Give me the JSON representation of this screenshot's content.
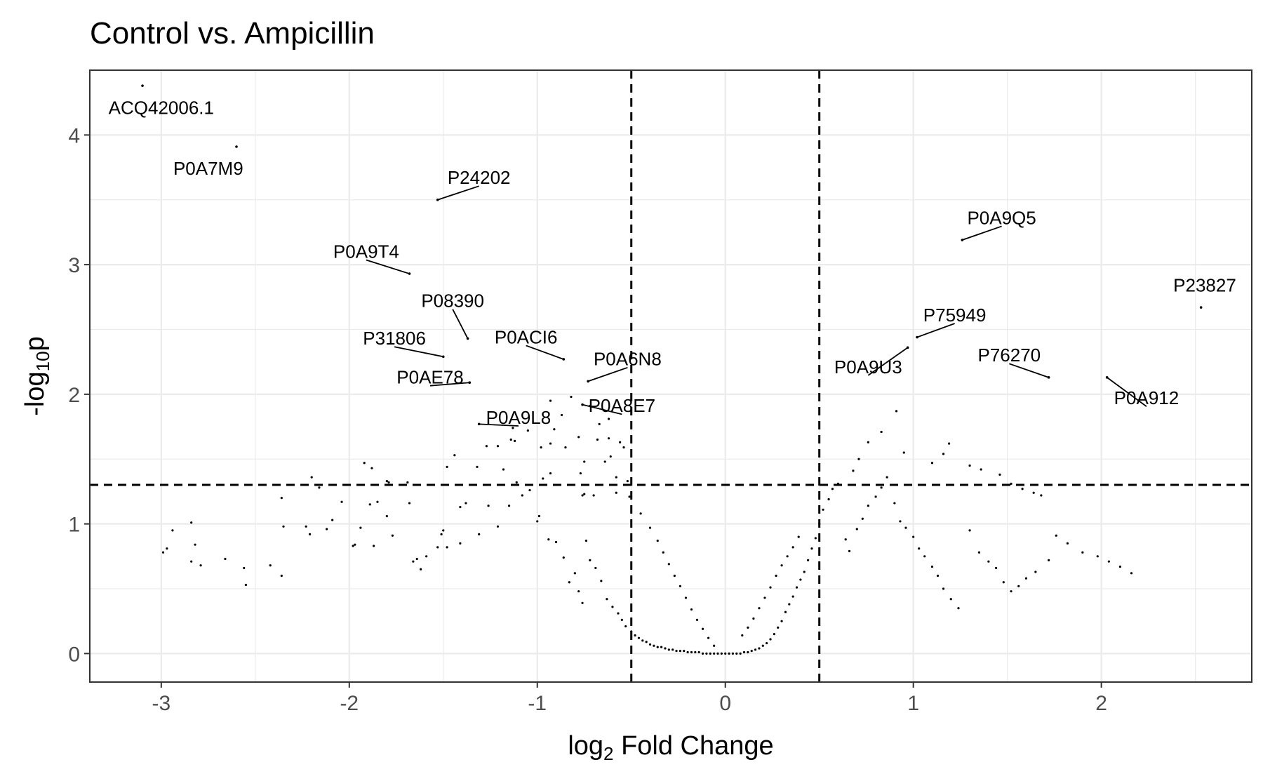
{
  "chart_data": {
    "type": "scatter",
    "title": "Control vs. Ampicillin",
    "xlabel": {
      "base": "log",
      "sub": "2",
      "rest": " Fold Change"
    },
    "ylabel": {
      "base": "-log",
      "sub": "10",
      "rest": "p"
    },
    "xlim": [
      -3.38,
      2.8
    ],
    "ylim": [
      -0.22,
      4.5
    ],
    "x_ticks": [
      -3,
      -2,
      -1,
      0,
      1,
      2
    ],
    "x_tick_labels": [
      "-3",
      "-2",
      "-1",
      "0",
      "1",
      "2"
    ],
    "y_ticks": [
      0,
      1,
      2,
      3,
      4
    ],
    "y_tick_labels": [
      "0",
      "1",
      "2",
      "3",
      "4"
    ],
    "grid": true,
    "thresholds": {
      "fold_change_lines": [
        -0.5,
        0.5
      ],
      "p_line": 1.301
    },
    "labeled_points": [
      {
        "label": "ACQ42006.1",
        "x": -3.1,
        "y": 4.38,
        "label_x": -3.0,
        "label_y": 4.2
      },
      {
        "label": "P0A7M9",
        "x": -2.6,
        "y": 3.91,
        "label_x": -2.75,
        "label_y": 3.73
      },
      {
        "label": "P24202",
        "x": -1.53,
        "y": 3.5,
        "label_x": -1.31,
        "label_y": 3.66
      },
      {
        "label": "P0A9Q5",
        "x": 1.26,
        "y": 3.19,
        "label_x": 1.47,
        "label_y": 3.35
      },
      {
        "label": "P0A9T4",
        "x": -1.68,
        "y": 2.93,
        "label_x": -1.91,
        "label_y": 3.09
      },
      {
        "label": "P23827",
        "x": 2.53,
        "y": 2.67,
        "label_x": 2.55,
        "label_y": 2.83
      },
      {
        "label": "P08390",
        "x": -1.37,
        "y": 2.43,
        "label_x": -1.45,
        "label_y": 2.71
      },
      {
        "label": "P75949",
        "x": 1.02,
        "y": 2.44,
        "label_x": 1.22,
        "label_y": 2.6
      },
      {
        "label": "P31806",
        "x": -1.5,
        "y": 2.29,
        "label_x": -1.76,
        "label_y": 2.42
      },
      {
        "label": "P0ACI6",
        "x": -0.86,
        "y": 2.27,
        "label_x": -1.06,
        "label_y": 2.43
      },
      {
        "label": "P0A6N8",
        "x": -0.73,
        "y": 2.1,
        "label_x": -0.52,
        "label_y": 2.26
      },
      {
        "label": "P0A9U3",
        "x": 0.97,
        "y": 2.36,
        "label_x": 0.76,
        "label_y": 2.2
      },
      {
        "label": "P76270",
        "x": 1.72,
        "y": 2.13,
        "label_x": 1.51,
        "label_y": 2.29
      },
      {
        "label": "P0AE78",
        "x": -1.36,
        "y": 2.09,
        "label_x": -1.57,
        "label_y": 2.12
      },
      {
        "label": "P0A912",
        "x": 2.03,
        "y": 2.13,
        "label_x": 2.24,
        "label_y": 1.96
      },
      {
        "label": "P0A8E7",
        "x": -0.76,
        "y": 1.92,
        "label_x": -0.55,
        "label_y": 1.9
      },
      {
        "label": "P0A9L8",
        "x": -1.31,
        "y": 1.77,
        "label_x": -1.1,
        "label_y": 1.81
      }
    ],
    "scatter_points": [
      [
        -2.97,
        0.81
      ],
      [
        -2.99,
        0.78
      ],
      [
        -2.94,
        0.95
      ],
      [
        -2.84,
        0.71
      ],
      [
        -2.84,
        1.01
      ],
      [
        -2.79,
        0.68
      ],
      [
        -2.82,
        0.84
      ],
      [
        -2.66,
        0.73
      ],
      [
        -2.56,
        0.66
      ],
      [
        -2.55,
        0.53
      ],
      [
        -2.42,
        0.68
      ],
      [
        -2.36,
        0.6
      ],
      [
        -2.23,
        0.98
      ],
      [
        -2.16,
        1.28
      ],
      [
        -2.2,
        1.36
      ],
      [
        -2.12,
        0.96
      ],
      [
        -1.98,
        0.83
      ],
      [
        -2.09,
        1.03
      ],
      [
        -1.94,
        0.97
      ],
      [
        -1.87,
        0.83
      ],
      [
        -1.97,
        0.84
      ],
      [
        -1.85,
        1.17
      ],
      [
        -1.89,
        1.15
      ],
      [
        -1.8,
        1.33
      ],
      [
        -1.8,
        1.06
      ],
      [
        -1.64,
        0.73
      ],
      [
        -1.77,
        0.91
      ],
      [
        -1.53,
        0.82
      ],
      [
        -1.68,
        1.16
      ],
      [
        -1.44,
        1.53
      ],
      [
        -1.69,
        1.32
      ],
      [
        -1.48,
        1.44
      ],
      [
        -1.41,
        1.13
      ],
      [
        -1.51,
        0.92
      ],
      [
        -1.48,
        0.82
      ],
      [
        -1.31,
        0.92
      ],
      [
        -1.41,
        0.85
      ],
      [
        -1.21,
        0.98
      ],
      [
        -1.38,
        1.16
      ],
      [
        -1.26,
        1.14
      ],
      [
        -1.32,
        1.44
      ],
      [
        -1.08,
        1.22
      ],
      [
        -1.15,
        1.14
      ],
      [
        -1.11,
        1.32
      ],
      [
        -1.18,
        1.42
      ],
      [
        -1.14,
        1.65
      ],
      [
        -1.13,
        1.74
      ],
      [
        -0.98,
        1.59
      ],
      [
        -0.93,
        1.62
      ],
      [
        -0.97,
        1.35
      ],
      [
        -0.93,
        1.39
      ],
      [
        -0.85,
        1.59
      ],
      [
        -0.76,
        1.22
      ],
      [
        -0.75,
        1.23
      ],
      [
        -0.7,
        1.22
      ],
      [
        -0.75,
        1.48
      ],
      [
        -0.64,
        1.48
      ],
      [
        -0.77,
        1.39
      ],
      [
        -0.61,
        1.52
      ],
      [
        -0.62,
        1.66
      ],
      [
        -0.58,
        1.24
      ],
      [
        -0.56,
        1.63
      ],
      [
        -0.58,
        1.36
      ],
      [
        -0.54,
        1.59
      ],
      [
        -0.68,
        1.65
      ],
      [
        -2.36,
        1.2
      ],
      [
        -2.35,
        0.98
      ],
      [
        -2.21,
        0.92
      ],
      [
        -2.04,
        1.17
      ],
      [
        -1.92,
        1.47
      ],
      [
        -1.88,
        1.43
      ],
      [
        -1.79,
        1.32
      ],
      [
        -1.66,
        0.71
      ],
      [
        -1.62,
        0.65
      ],
      [
        -1.59,
        0.75
      ],
      [
        -1.5,
        0.95
      ],
      [
        -1.27,
        1.6
      ],
      [
        -1.21,
        1.6
      ],
      [
        -1.12,
        1.64
      ],
      [
        -1.05,
        1.72
      ],
      [
        -0.93,
        1.95
      ],
      [
        -0.91,
        1.73
      ],
      [
        -0.87,
        1.84
      ],
      [
        -0.82,
        1.98
      ],
      [
        -0.78,
        1.67
      ],
      [
        -0.72,
        1.91
      ],
      [
        -0.67,
        1.77
      ],
      [
        -0.62,
        1.81
      ],
      [
        -0.52,
        1.33
      ],
      [
        -0.51,
        1.21
      ],
      [
        -1.04,
        1.26
      ],
      [
        -1.0,
        1.02
      ],
      [
        -0.99,
        1.06
      ],
      [
        -0.94,
        0.88
      ],
      [
        -0.9,
        0.86
      ],
      [
        -0.86,
        0.74
      ],
      [
        -0.83,
        0.55
      ],
      [
        -0.8,
        0.62
      ],
      [
        -0.78,
        0.48
      ],
      [
        -0.76,
        0.39
      ],
      [
        -0.74,
        0.87
      ],
      [
        -0.72,
        0.72
      ],
      [
        -0.69,
        0.66
      ],
      [
        -0.66,
        0.56
      ],
      [
        -0.63,
        0.42
      ],
      [
        -0.6,
        0.36
      ],
      [
        -0.57,
        0.31
      ],
      [
        -0.55,
        0.26
      ],
      [
        -0.53,
        0.21
      ],
      [
        -0.5,
        0.17
      ],
      [
        -0.48,
        0.14
      ],
      [
        -0.46,
        0.12
      ],
      [
        -0.44,
        0.1
      ],
      [
        -0.42,
        0.09
      ],
      [
        -0.4,
        0.07
      ],
      [
        -0.38,
        0.06
      ],
      [
        -0.36,
        0.05
      ],
      [
        -0.34,
        0.05
      ],
      [
        -0.32,
        0.04
      ],
      [
        -0.3,
        0.03
      ],
      [
        -0.28,
        0.03
      ],
      [
        -0.26,
        0.02
      ],
      [
        -0.24,
        0.02
      ],
      [
        -0.22,
        0.02
      ],
      [
        -0.2,
        0.01
      ],
      [
        -0.18,
        0.01
      ],
      [
        -0.16,
        0.01
      ],
      [
        -0.14,
        0.01
      ],
      [
        -0.12,
        0.0
      ],
      [
        -0.1,
        0.0
      ],
      [
        -0.08,
        0.0
      ],
      [
        -0.06,
        0.0
      ],
      [
        -0.04,
        0.0
      ],
      [
        -0.02,
        0.0
      ],
      [
        0.0,
        0.0
      ],
      [
        0.02,
        0.0
      ],
      [
        0.04,
        0.0
      ],
      [
        0.06,
        0.0
      ],
      [
        0.08,
        0.0
      ],
      [
        0.1,
        0.01
      ],
      [
        0.12,
        0.01
      ],
      [
        0.14,
        0.02
      ],
      [
        0.16,
        0.03
      ],
      [
        0.18,
        0.04
      ],
      [
        0.2,
        0.06
      ],
      [
        0.22,
        0.08
      ],
      [
        0.24,
        0.11
      ],
      [
        0.26,
        0.15
      ],
      [
        0.28,
        0.2
      ],
      [
        0.3,
        0.25
      ],
      [
        0.32,
        0.32
      ],
      [
        0.34,
        0.38
      ],
      [
        0.36,
        0.44
      ],
      [
        0.38,
        0.51
      ],
      [
        0.4,
        0.57
      ],
      [
        0.42,
        0.63
      ],
      [
        0.44,
        0.72
      ],
      [
        0.46,
        0.81
      ],
      [
        0.48,
        0.89
      ],
      [
        0.5,
        1.0
      ],
      [
        0.52,
        1.11
      ],
      [
        0.55,
        1.19
      ],
      [
        0.57,
        1.27
      ],
      [
        0.6,
        1.31
      ],
      [
        0.64,
        0.88
      ],
      [
        0.66,
        0.79
      ],
      [
        0.7,
        0.96
      ],
      [
        0.73,
        1.04
      ],
      [
        0.76,
        1.14
      ],
      [
        0.8,
        1.21
      ],
      [
        0.83,
        1.28
      ],
      [
        0.86,
        1.36
      ],
      [
        0.9,
        1.16
      ],
      [
        0.93,
        1.02
      ],
      [
        0.96,
        0.97
      ],
      [
        1.0,
        0.9
      ],
      [
        1.03,
        0.81
      ],
      [
        1.06,
        0.75
      ],
      [
        1.1,
        0.67
      ],
      [
        1.13,
        0.6
      ],
      [
        1.16,
        0.5
      ],
      [
        1.2,
        0.42
      ],
      [
        1.24,
        0.35
      ],
      [
        1.3,
        0.95
      ],
      [
        1.35,
        0.78
      ],
      [
        1.4,
        0.71
      ],
      [
        1.44,
        0.66
      ],
      [
        1.48,
        0.55
      ],
      [
        1.52,
        0.48
      ],
      [
        1.56,
        0.52
      ],
      [
        1.6,
        0.58
      ],
      [
        1.65,
        0.63
      ],
      [
        1.72,
        0.72
      ],
      [
        1.76,
        0.91
      ],
      [
        1.82,
        0.85
      ],
      [
        1.9,
        0.78
      ],
      [
        1.98,
        0.75
      ],
      [
        2.04,
        0.71
      ],
      [
        2.1,
        0.67
      ],
      [
        2.16,
        0.62
      ],
      [
        0.68,
        1.41
      ],
      [
        0.71,
        1.5
      ],
      [
        0.76,
        1.63
      ],
      [
        0.83,
        1.71
      ],
      [
        0.91,
        1.87
      ],
      [
        0.95,
        1.55
      ],
      [
        1.1,
        1.47
      ],
      [
        1.16,
        1.54
      ],
      [
        1.19,
        1.62
      ],
      [
        1.3,
        1.45
      ],
      [
        1.36,
        1.42
      ],
      [
        1.46,
        1.38
      ],
      [
        1.52,
        1.31
      ],
      [
        1.58,
        1.27
      ],
      [
        1.64,
        1.24
      ],
      [
        1.68,
        1.22
      ],
      [
        -0.45,
        1.08
      ],
      [
        -0.4,
        0.97
      ],
      [
        -0.36,
        0.87
      ],
      [
        -0.33,
        0.78
      ],
      [
        -0.3,
        0.69
      ],
      [
        -0.27,
        0.6
      ],
      [
        -0.24,
        0.52
      ],
      [
        -0.21,
        0.43
      ],
      [
        -0.18,
        0.34
      ],
      [
        -0.15,
        0.26
      ],
      [
        -0.12,
        0.19
      ],
      [
        -0.09,
        0.12
      ],
      [
        -0.06,
        0.06
      ],
      [
        0.09,
        0.14
      ],
      [
        0.12,
        0.2
      ],
      [
        0.15,
        0.27
      ],
      [
        0.18,
        0.35
      ],
      [
        0.21,
        0.43
      ],
      [
        0.24,
        0.51
      ],
      [
        0.27,
        0.6
      ],
      [
        0.3,
        0.68
      ],
      [
        0.33,
        0.75
      ],
      [
        0.36,
        0.82
      ],
      [
        0.39,
        0.9
      ]
    ]
  }
}
